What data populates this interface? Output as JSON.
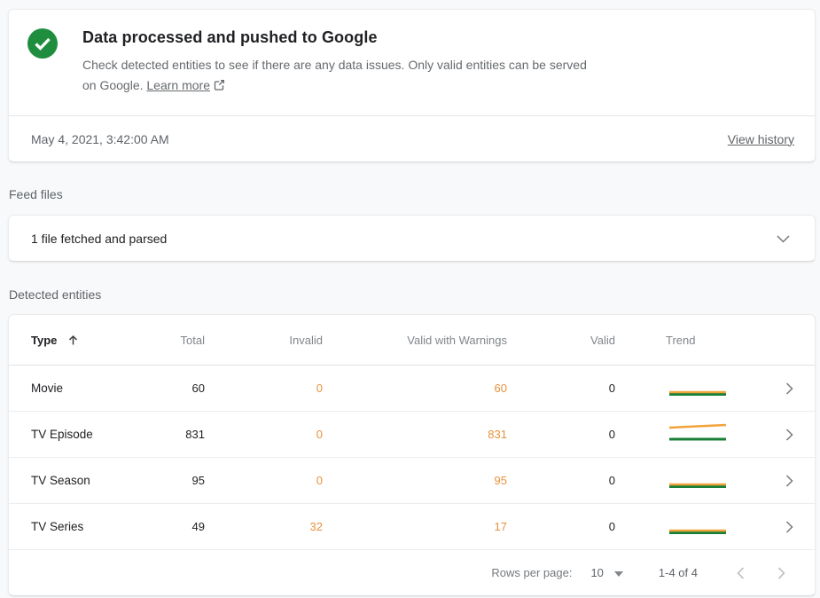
{
  "colors": {
    "success_green": "#1e8e3e",
    "trend_green": "#188038",
    "trend_orange": "#f2a33c",
    "warning_orange": "#e8913c"
  },
  "status_card": {
    "title": "Data processed and pushed to Google",
    "description": "Check detected entities to see if there are any data issues. Only valid entities can be served on Google.",
    "learn_more_label": "Learn more",
    "timestamp": "May 4, 2021, 3:42:00 AM",
    "view_history_label": "View history"
  },
  "feed_files": {
    "section_label": "Feed files",
    "summary": "1 file fetched and parsed"
  },
  "detected_entities": {
    "section_label": "Detected entities",
    "columns": {
      "type": "Type",
      "total": "Total",
      "invalid": "Invalid",
      "valid_with_warnings": "Valid with Warnings",
      "valid": "Valid",
      "trend": "Trend"
    },
    "sort": {
      "column": "Type",
      "direction": "ascending"
    },
    "rows": [
      {
        "type": "Movie",
        "total": "60",
        "invalid": "0",
        "valid_with_warnings": "60",
        "valid": "0",
        "trend": {
          "series": [
            {
              "color": "trend_green",
              "width": 3,
              "points": [
                [
                  1,
                  21.5
                ],
                [
                  65,
                  21.5
                ]
              ]
            },
            {
              "color": "trend_orange",
              "width": 2.5,
              "points": [
                [
                  1,
                  19
                ],
                [
                  65,
                  19
                ]
              ]
            }
          ]
        }
      },
      {
        "type": "TV Episode",
        "total": "831",
        "invalid": "0",
        "valid_with_warnings": "831",
        "valid": "0",
        "trend": {
          "series": [
            {
              "color": "trend_green",
              "width": 3,
              "points": [
                [
                  1,
                  20
                ],
                [
                  65,
                  20
                ]
              ]
            },
            {
              "color": "trend_orange",
              "width": 2.5,
              "points": [
                [
                  1,
                  7
                ],
                [
                  65,
                  4
                ]
              ]
            }
          ]
        }
      },
      {
        "type": "TV Season",
        "total": "95",
        "invalid": "0",
        "valid_with_warnings": "95",
        "valid": "0",
        "trend": {
          "series": [
            {
              "color": "trend_green",
              "width": 3,
              "points": [
                [
                  1,
                  21.5
                ],
                [
                  65,
                  21.5
                ]
              ]
            },
            {
              "color": "trend_orange",
              "width": 2.5,
              "points": [
                [
                  1,
                  19
                ],
                [
                  65,
                  19
                ]
              ]
            }
          ]
        }
      },
      {
        "type": "TV Series",
        "total": "49",
        "invalid": "32",
        "valid_with_warnings": "17",
        "valid": "0",
        "trend": {
          "series": [
            {
              "color": "trend_green",
              "width": 3,
              "points": [
                [
                  1,
                  21.5
                ],
                [
                  65,
                  21.5
                ]
              ]
            },
            {
              "color": "trend_orange",
              "width": 2.5,
              "points": [
                [
                  1,
                  19
                ],
                [
                  65,
                  19
                ]
              ]
            }
          ]
        }
      }
    ],
    "pagination": {
      "rows_per_page_label": "Rows per page:",
      "rows_per_page_value": "10",
      "range": "1-4 of 4"
    }
  }
}
